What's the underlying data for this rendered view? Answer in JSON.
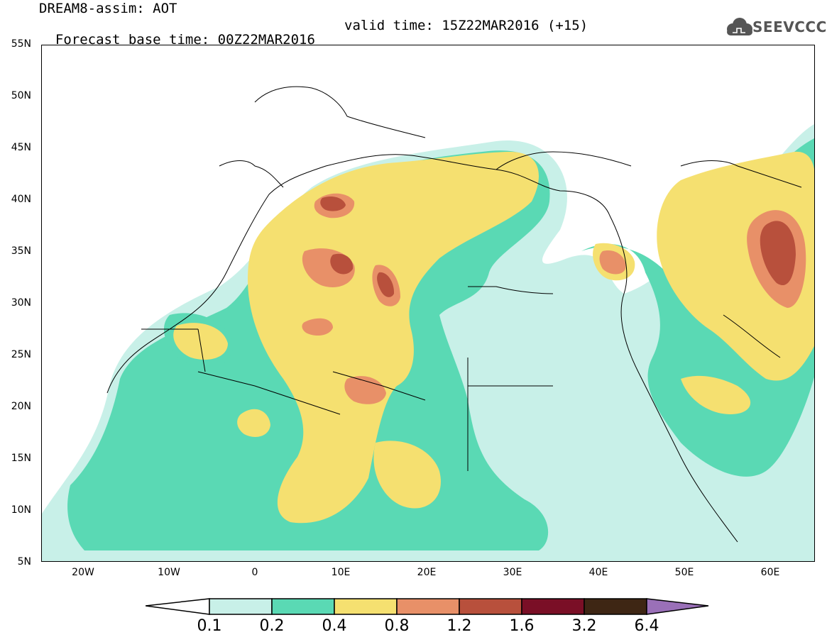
{
  "header": {
    "title": "DREAM8-assim: AOT",
    "base_time": "Forecast base time: 00Z22MAR2016",
    "valid_time": "valid time: 15Z22MAR2016 (+15)"
  },
  "logo": {
    "text": "SEEVCCC",
    "icon": "cloud-icon"
  },
  "axes": {
    "lat_ticks": [
      "55N",
      "50N",
      "45N",
      "40N",
      "35N",
      "30N",
      "25N",
      "20N",
      "15N",
      "10N",
      "5N"
    ],
    "lon_ticks": [
      "20W",
      "10W",
      "0",
      "10E",
      "20E",
      "30E",
      "40E",
      "50E",
      "60E"
    ]
  },
  "legend": {
    "labels": [
      "0.1",
      "0.2",
      "0.4",
      "0.8",
      "1.2",
      "1.6",
      "3.2",
      "6.4"
    ],
    "colors": [
      "#c8f0e8",
      "#5ad9b4",
      "#f5e070",
      "#e89068",
      "#b8503c",
      "#7a0f26",
      "#3e2614",
      "#9a70b8"
    ]
  },
  "map": {
    "lat_range": [
      5,
      55
    ],
    "lon_range": [
      -25,
      65
    ],
    "field": "AOT"
  }
}
